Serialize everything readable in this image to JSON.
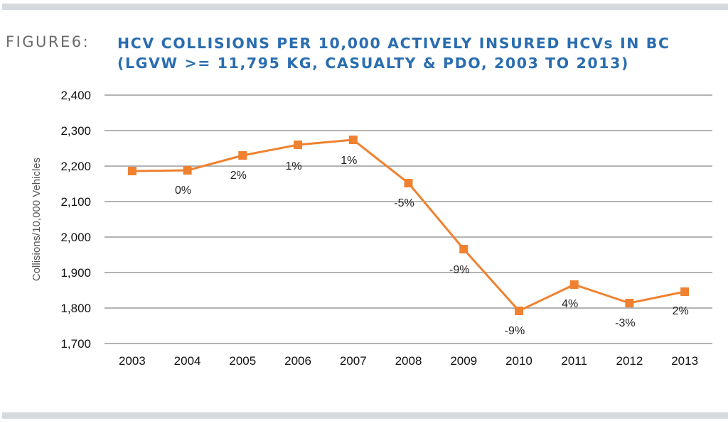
{
  "header": {
    "figure_label": "FIGURE6:",
    "title_line1": "HCV COLLISIONS PER 10,000 ACTIVELY INSURED HCVs IN BC",
    "title_line2": "(LGVW >= 11,795 KG, CASUALTY & PDO, 2003 TO 2013)"
  },
  "colors": {
    "title": "#2a6db0",
    "series": "#ef8130",
    "grid": "#9a9a9a",
    "bars": "#d6dadf"
  },
  "chart_data": {
    "type": "line",
    "title": "HCV COLLISIONS PER 10,000 ACTIVELY INSURED HCVs IN BC (LGVW >= 11,795 KG, CASUALTY & PDO, 2003 TO 2013)",
    "xlabel": "",
    "ylabel": "Collisions/10,000 Vehicles",
    "categories": [
      "2003",
      "2004",
      "2005",
      "2006",
      "2007",
      "2008",
      "2009",
      "2010",
      "2011",
      "2012",
      "2013"
    ],
    "series": [
      {
        "name": "Collisions per 10,000 vehicles",
        "values": [
          2186,
          2188,
          2230,
          2260,
          2274,
          2152,
          1966,
          1792,
          1866,
          1814,
          1846
        ],
        "labels": [
          "",
          "0%",
          "2%",
          "1%",
          "1%",
          "-5%",
          "-9%",
          "-9%",
          "4%",
          "-3%",
          "2%"
        ],
        "marker": "square"
      }
    ],
    "ylim": [
      1700,
      2400
    ],
    "yticks": [
      1700,
      1800,
      1900,
      2000,
      2100,
      2200,
      2300,
      2400
    ],
    "ytick_labels": [
      "1,700",
      "1,800",
      "1,900",
      "2,000",
      "2,100",
      "2,200",
      "2,300",
      "2,400"
    ],
    "grid": true,
    "legend": "none"
  }
}
